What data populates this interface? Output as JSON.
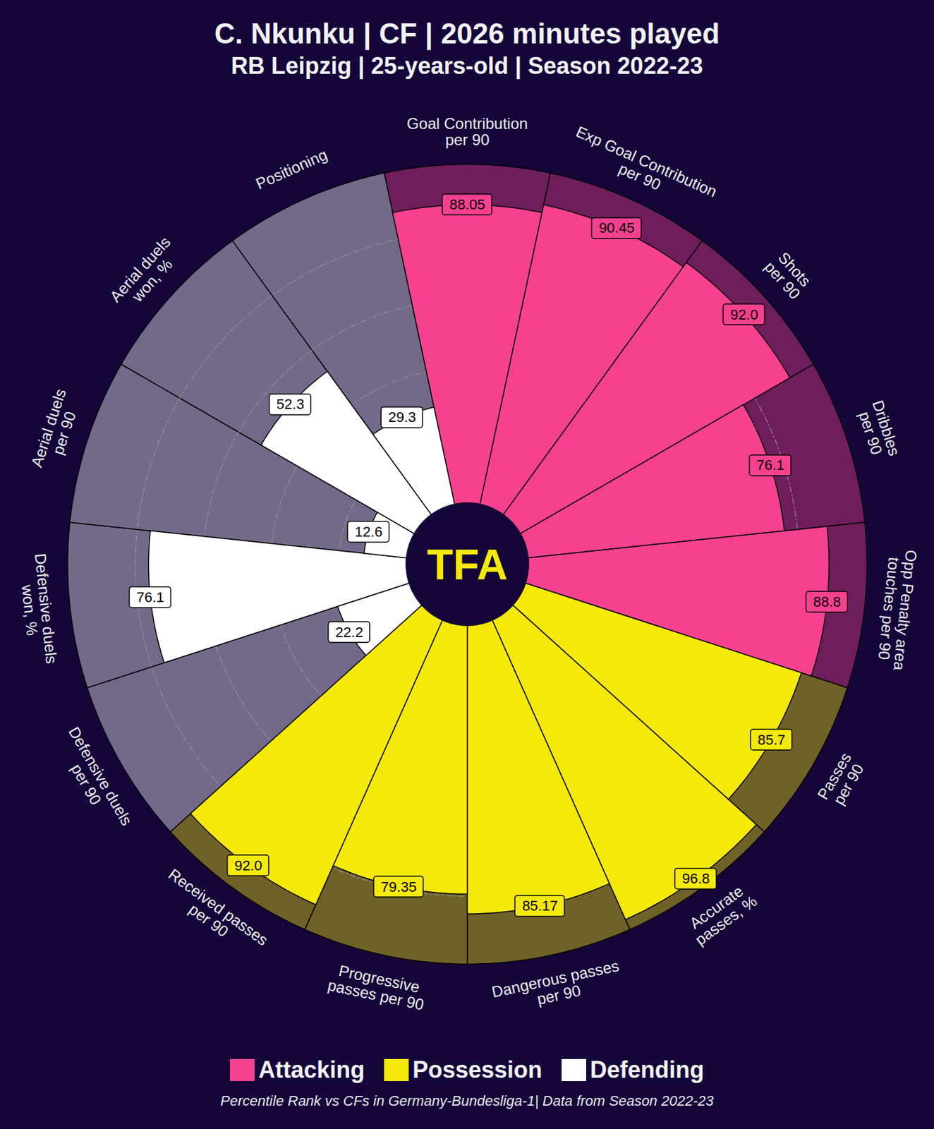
{
  "chart_data": {
    "type": "pizza",
    "title": "C. Nkunku | CF | 2026 minutes played",
    "subtitle": "RB Leipzig | 25-years-old | Season 2022-23",
    "caption": "Percentile Rank vs CFs in Germany-Bundesliga-1| Data from Season 2022-23",
    "center_label": "TFA",
    "series": [
      {
        "name": "Attacking",
        "color": "#f7418f",
        "categories": [
          "Goal Contribution\nper 90",
          "Exp Goal Contribution\nper 90",
          "Shots\nper 90",
          "Dribbles\nper 90",
          "Opp Penalty area\ntouches per 90"
        ],
        "values": [
          88.05,
          90.45,
          92.0,
          76.1,
          88.8
        ],
        "value_labels": [
          "88.05",
          "90.45",
          "92.0",
          "76.1",
          "88.8"
        ]
      },
      {
        "name": "Possession",
        "color": "#f5e90a",
        "categories": [
          "Passes\nper 90",
          "Accurate\npasses, %",
          "Dangerous passes\nper 90",
          "Progressive\npasses per 90",
          "Received passes\nper 90"
        ],
        "values": [
          85.7,
          96.8,
          85.17,
          79.35,
          92.0
        ],
        "value_labels": [
          "85.7",
          "96.8",
          "85.17",
          "79.35",
          "92.0"
        ]
      },
      {
        "name": "Defending",
        "color": "#ffffff",
        "categories": [
          "Defensive duels\nper 90",
          "Defensive duels\nwon, %",
          "Aerial duels\nper 90",
          "Aerial duels\nwon, %",
          "Positioning"
        ],
        "values": [
          22.2,
          76.1,
          12.6,
          52.3,
          29.3
        ],
        "value_labels": [
          "22.2",
          "76.1",
          "12.6",
          "52.3",
          "29.3"
        ]
      }
    ],
    "ylim": [
      0,
      100
    ],
    "yticks": [
      20,
      40,
      60,
      80
    ],
    "grid": true,
    "tick_labels": false,
    "data_labels": true,
    "legend": "bottom"
  }
}
